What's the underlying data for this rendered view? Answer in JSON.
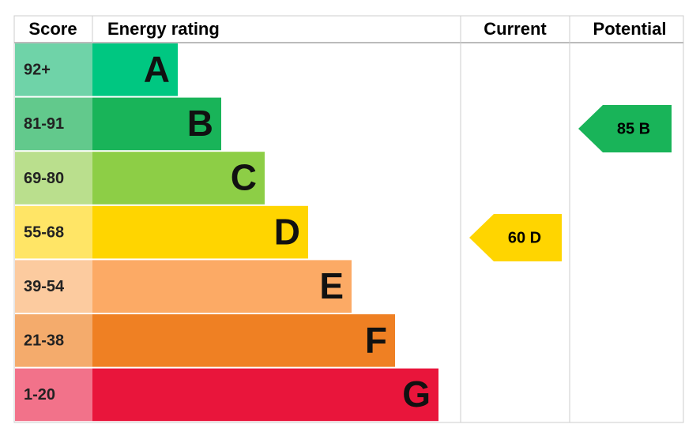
{
  "header": {
    "score": "Score",
    "energy_rating": "Energy rating",
    "current": "Current",
    "potential": "Potential"
  },
  "bands": [
    {
      "score": "92+",
      "letter": "A",
      "color": "#00c781",
      "light": "#6fd3a8"
    },
    {
      "score": "81-91",
      "letter": "B",
      "color": "#19b459",
      "light": "#62c98c"
    },
    {
      "score": "69-80",
      "letter": "C",
      "color": "#8dce46",
      "light": "#badf8d"
    },
    {
      "score": "55-68",
      "letter": "D",
      "color": "#ffd500",
      "light": "#ffe566"
    },
    {
      "score": "39-54",
      "letter": "E",
      "color": "#fcaa65",
      "light": "#fccb9f"
    },
    {
      "score": "21-38",
      "letter": "F",
      "color": "#ef8023",
      "light": "#f4ab6c"
    },
    {
      "score": "1-20",
      "letter": "G",
      "color": "#e9153b",
      "light": "#f2728a"
    }
  ],
  "current": {
    "label": "60 D",
    "color": "#ffd500"
  },
  "potential": {
    "label": "85 B",
    "color": "#19b459"
  }
}
